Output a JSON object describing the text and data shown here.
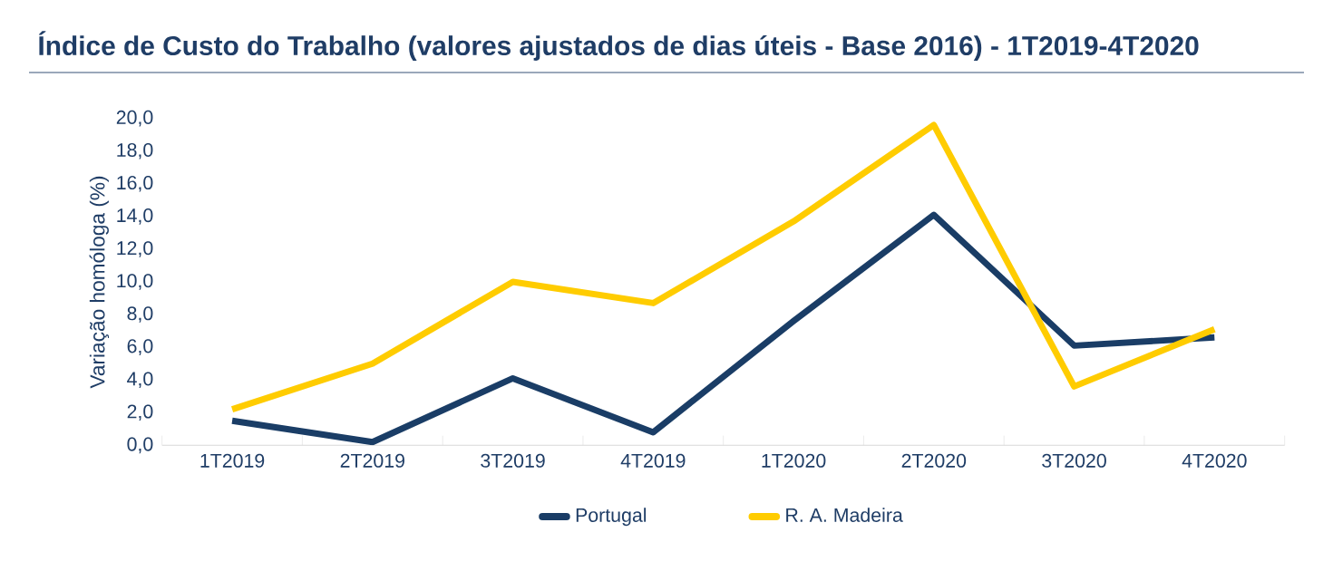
{
  "chart_data": {
    "type": "line",
    "title": "Índice de Custo do Trabalho (valores ajustados de dias úteis - Base 2016) - 1T2019-4T2020",
    "ylabel": "Variação homóloga (%)",
    "categories": [
      "1T2019",
      "2T2019",
      "3T2019",
      "4T2019",
      "1T2020",
      "2T2020",
      "3T2020",
      "4T2020"
    ],
    "series": [
      {
        "name": "Portugal",
        "color": "#1a3d66",
        "values": [
          1.5,
          0.2,
          4.1,
          0.8,
          7.6,
          14.1,
          6.1,
          6.6
        ]
      },
      {
        "name": "R. A. Madeira",
        "color": "#ffcc00",
        "values": [
          2.2,
          5.0,
          10.0,
          8.7,
          13.7,
          19.6,
          3.6,
          7.1
        ]
      }
    ],
    "ylim": [
      0,
      20
    ],
    "yticks": [
      {
        "value": 0,
        "label": "0,0"
      },
      {
        "value": 2,
        "label": "2,0"
      },
      {
        "value": 4,
        "label": "4,0"
      },
      {
        "value": 6,
        "label": "6,0"
      },
      {
        "value": 8,
        "label": "8,0"
      },
      {
        "value": 10,
        "label": "10,0"
      },
      {
        "value": 12,
        "label": "12,0"
      },
      {
        "value": 14,
        "label": "14,0"
      },
      {
        "value": 16,
        "label": "16,0"
      },
      {
        "value": 18,
        "label": "18,0"
      },
      {
        "value": 20,
        "label": "20,0"
      }
    ],
    "grid": false,
    "legend": "bottom",
    "marker": "none",
    "line_style": "solid"
  }
}
